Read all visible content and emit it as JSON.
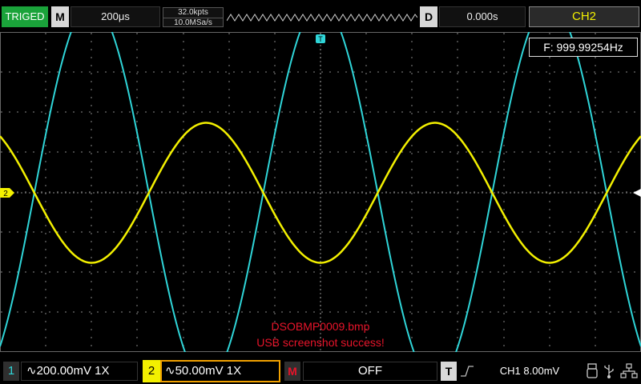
{
  "topbar": {
    "trigger_status": "TRIGED",
    "menu_m": "M",
    "timebase": "200μs",
    "memory_depth": "32.0kpts",
    "sample_rate": "10.0MSa/s",
    "menu_d": "D",
    "delay": "0.000s",
    "selected_channel": "CH2"
  },
  "screen": {
    "frequency_counter": "F: 999.99254Hz",
    "trigger_marker": "T",
    "ch2_marker": "2",
    "message_line1": "DSOBMP0009.bmp",
    "message_line2": "USB screenshot success!"
  },
  "bottombar": {
    "ch1_number": "1",
    "ch1_scale": "∿200.00mV  1X",
    "ch2_number": "2",
    "ch2_scale": "∿50.00mV  1X",
    "math_badge": "M",
    "math_state": "OFF",
    "trigger_badge": "T",
    "trigger_info": "CH1  8.00mV"
  },
  "icons": {
    "trigger_slope": "rising-edge-icon",
    "usb": "usb-icon",
    "usb_device": "usb-device-icon",
    "network": "network-icon"
  },
  "colors": {
    "ch1": "#2fd5d8",
    "ch2": "#f3f000",
    "triged": "#1aa33a",
    "message": "#e8142a",
    "grid": "#8a8a8a"
  },
  "chart_data": {
    "type": "line",
    "title": "",
    "xlabel": "",
    "ylabel": "",
    "grid": true,
    "x_divisions": 14,
    "y_divisions": 8,
    "series": [
      {
        "name": "",
        "channel": "CH1",
        "color": "#2fd5d8",
        "frequency_hz": 1000,
        "amplitude_div": 4.75,
        "phase_cycles": 0.25,
        "offset_div": 0
      },
      {
        "name": "",
        "channel": "CH2",
        "color": "#f3f000",
        "frequency_hz": 1000,
        "amplitude_div": 1.75,
        "phase_cycles": -0.25,
        "offset_div": 0
      }
    ]
  }
}
